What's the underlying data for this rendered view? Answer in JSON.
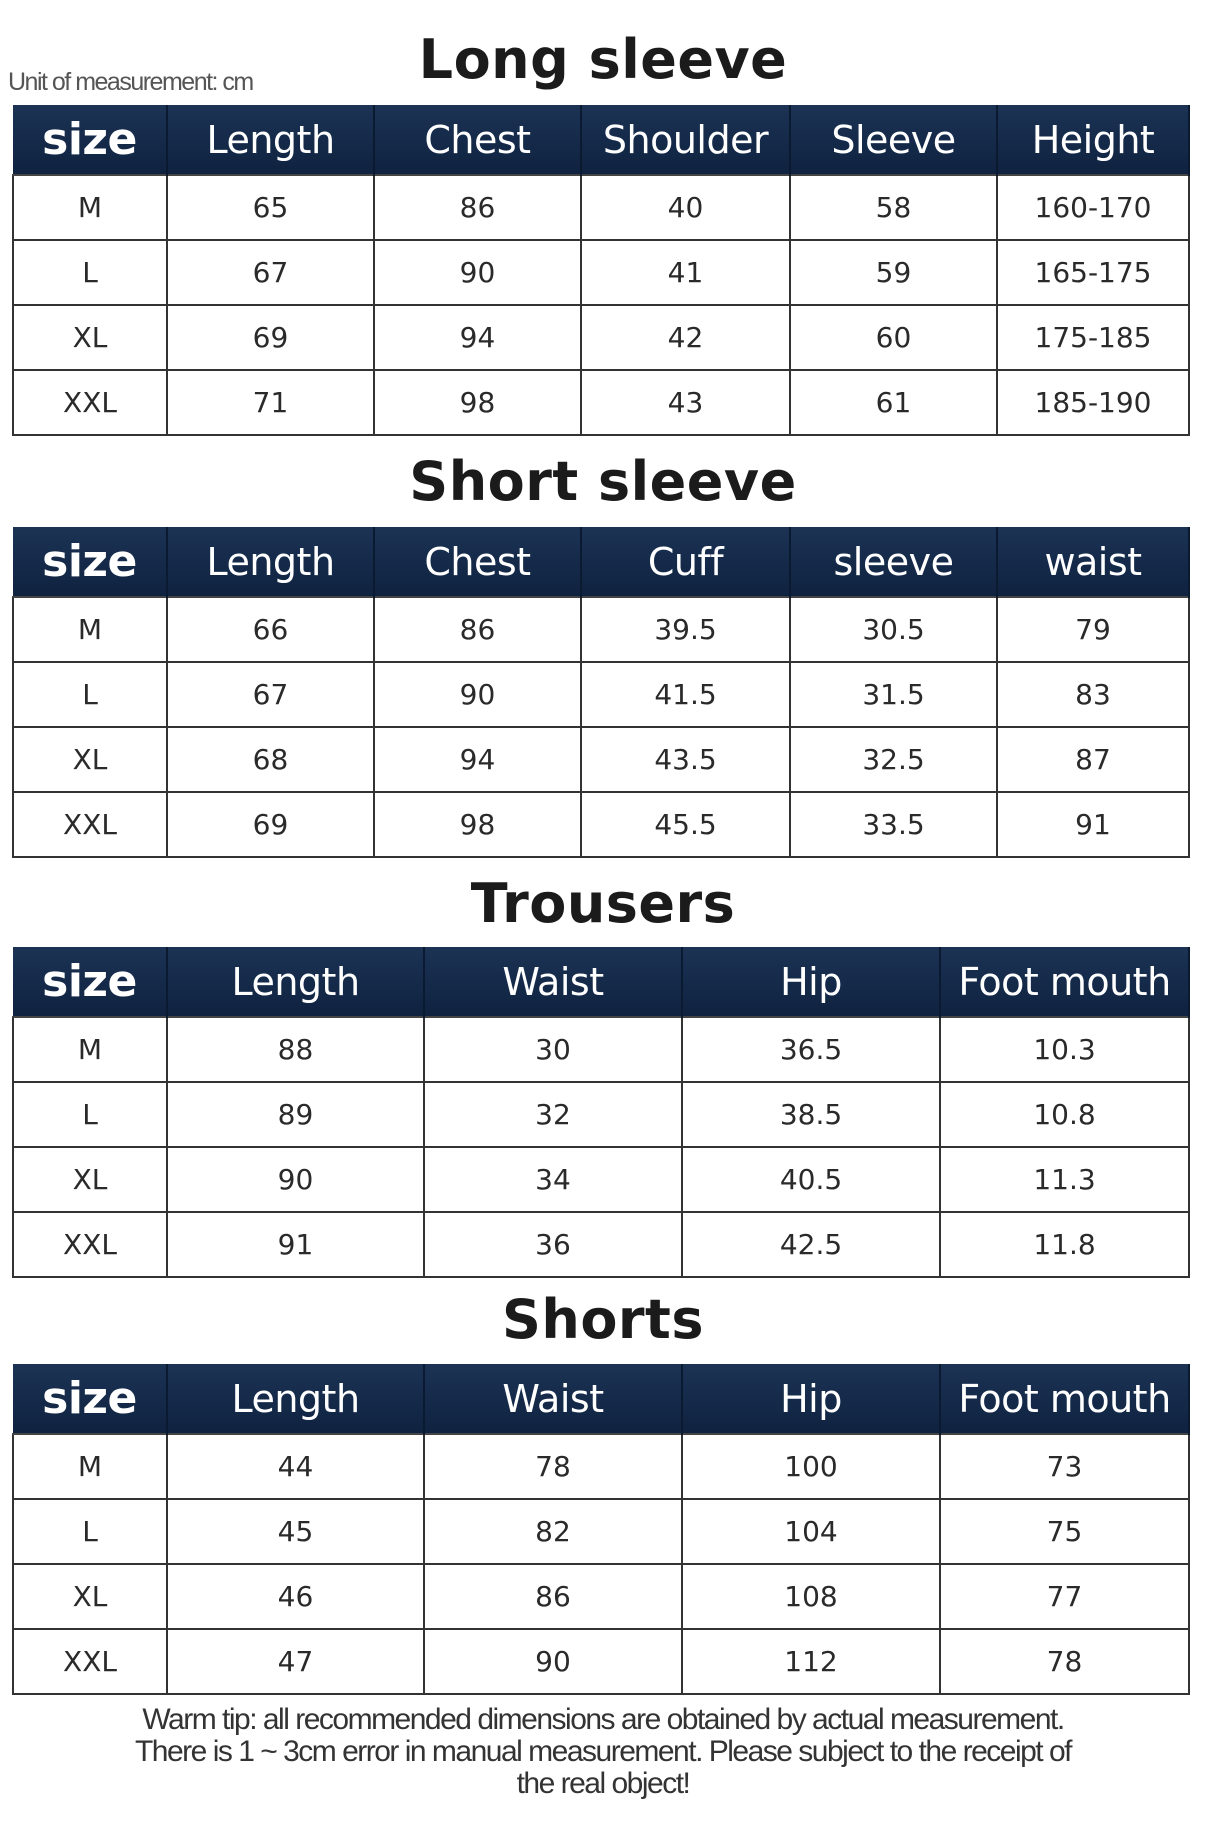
{
  "unit_label": "Unit of measurement: cm",
  "header_color": "#14294a",
  "tables": [
    {
      "title": "Long sleeve",
      "headers": [
        "size",
        "Length",
        "Chest",
        "Shoulder",
        "Sleeve",
        "Height"
      ],
      "rows": [
        [
          "M",
          "65",
          "86",
          "40",
          "58",
          "160-170"
        ],
        [
          "L",
          "67",
          "90",
          "41",
          "59",
          "165-175"
        ],
        [
          "XL",
          "69",
          "94",
          "42",
          "60",
          "175-185"
        ],
        [
          "XXL",
          "71",
          "98",
          "43",
          "61",
          "185-190"
        ]
      ]
    },
    {
      "title": "Short sleeve",
      "headers": [
        "size",
        "Length",
        "Chest",
        "Cuff",
        "sleeve",
        "waist"
      ],
      "rows": [
        [
          "M",
          "66",
          "86",
          "39.5",
          "30.5",
          "79"
        ],
        [
          "L",
          "67",
          "90",
          "41.5",
          "31.5",
          "83"
        ],
        [
          "XL",
          "68",
          "94",
          "43.5",
          "32.5",
          "87"
        ],
        [
          "XXL",
          "69",
          "98",
          "45.5",
          "33.5",
          "91"
        ]
      ]
    },
    {
      "title": "Trousers",
      "headers": [
        "size",
        "Length",
        "Waist",
        "Hip",
        "Foot mouth"
      ],
      "rows": [
        [
          "M",
          "88",
          "30",
          "36.5",
          "10.3"
        ],
        [
          "L",
          "89",
          "32",
          "38.5",
          "10.8"
        ],
        [
          "XL",
          "90",
          "34",
          "40.5",
          "11.3"
        ],
        [
          "XXL",
          "91",
          "36",
          "42.5",
          "11.8"
        ]
      ]
    },
    {
      "title": "Shorts",
      "headers": [
        "size",
        "Length",
        "Waist",
        "Hip",
        "Foot mouth"
      ],
      "rows": [
        [
          "M",
          "44",
          "78",
          "100",
          "73"
        ],
        [
          "L",
          "45",
          "82",
          "104",
          "75"
        ],
        [
          "XL",
          "46",
          "86",
          "108",
          "77"
        ],
        [
          "XXL",
          "47",
          "90",
          "112",
          "78"
        ]
      ]
    }
  ],
  "footer": {
    "line1": "Warm tip: all recommended dimensions are obtained by actual measurement.",
    "line2": "There is 1 ~ 3cm error in manual measurement. Please subject to the receipt of",
    "line3": "the real object!"
  }
}
